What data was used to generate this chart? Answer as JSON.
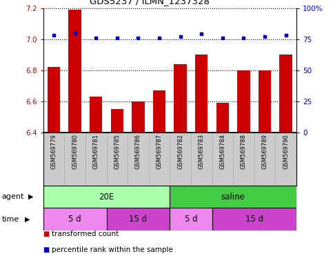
{
  "title": "GDS5237 / ILMN_1237328",
  "samples": [
    "GSM569779",
    "GSM569780",
    "GSM569781",
    "GSM569785",
    "GSM569786",
    "GSM569787",
    "GSM569782",
    "GSM569783",
    "GSM569784",
    "GSM569788",
    "GSM569789",
    "GSM569790"
  ],
  "bar_values": [
    6.82,
    7.19,
    6.63,
    6.55,
    6.6,
    6.67,
    6.84,
    6.9,
    6.59,
    6.8,
    6.8,
    6.9
  ],
  "percentile_values": [
    78,
    80,
    76,
    76,
    76,
    76,
    77,
    79,
    76,
    76,
    77,
    78
  ],
  "ylim_left": [
    6.4,
    7.2
  ],
  "ylim_right": [
    0,
    100
  ],
  "yticks_left": [
    6.4,
    6.6,
    6.8,
    7.0,
    7.2
  ],
  "yticks_right": [
    0,
    25,
    50,
    75,
    100
  ],
  "ytick_labels_right": [
    "0",
    "25",
    "50",
    "75",
    "100%"
  ],
  "bar_color": "#cc0000",
  "dot_color": "#0000cc",
  "grid_color": "#000000",
  "agent_20E_color": "#aaffaa",
  "agent_saline_color": "#44cc44",
  "time_5d_color": "#ee88ee",
  "time_15d_color": "#cc44cc",
  "sample_bg_color": "#cccccc",
  "agent_label_20E": "20E",
  "agent_label_saline": "saline",
  "time_label_5d": "5 d",
  "time_label_15d": "15 d",
  "legend_bar_label": "transformed count",
  "legend_dot_label": "percentile rank within the sample"
}
